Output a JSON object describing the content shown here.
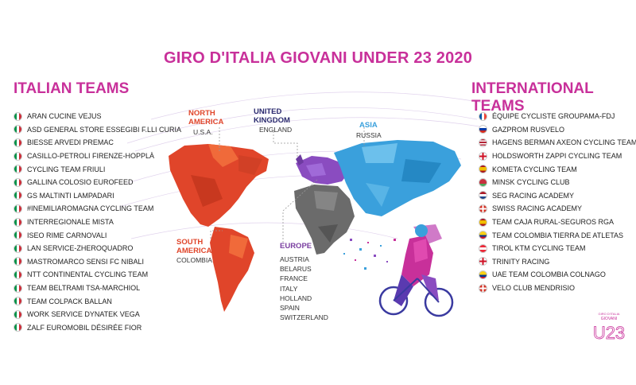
{
  "title": "GIRO D'ITALIA GIOVANI UNDER 23 2020",
  "italian": {
    "heading": "ITALIAN TEAMS",
    "teams": [
      "ARAN CUCINE VEJUS",
      "ASD GENERAL STORE ESSEGIBI F.LLI CURIA",
      "BIESSE ARVEDI PREMAC",
      "CASILLO-PETROLI FIRENZE-HOPPLÀ",
      "CYCLING TEAM FRIULI",
      "GALLINA COLOSIO EUROFEED",
      "GS MALTINTI LAMPADARI",
      "#INEMILIAROMAGNA CYCLING TEAM",
      "INTERREGIONALE MISTA",
      "ISEO RIME CARNOVALI",
      "LAN SERVICE-ZHEROQUADRO",
      "MASTROMARCO SENSI FC NIBALI",
      "NTT CONTINENTAL CYCLING TEAM",
      "TEAM BELTRAMI TSA-MARCHIOL",
      "TEAM COLPACK BALLAN",
      "WORK SERVICE DYNATEK VEGA",
      "ZALF EUROMOBIL DÉSIRÉE FIOR"
    ]
  },
  "international": {
    "heading": "INTERNATIONAL TEAMS",
    "teams": [
      {
        "name": "ÉQUIPE CYCLISTE GROUPAMA-FDJ",
        "flag": "france"
      },
      {
        "name": "GAZPROM RUSVELO",
        "flag": "russia"
      },
      {
        "name": "HAGENS BERMAN AXEON CYCLING TEAM",
        "flag": "usa"
      },
      {
        "name": "HOLDSWORTH ZAPPI CYCLING TEAM",
        "flag": "england"
      },
      {
        "name": "KOMETA CYCLING TEAM",
        "flag": "spain"
      },
      {
        "name": "MINSK CYCLING CLUB",
        "flag": "belarus"
      },
      {
        "name": "SEG RACING ACADEMY",
        "flag": "netherlands"
      },
      {
        "name": "SWISS RACING ACADEMY",
        "flag": "switzerland"
      },
      {
        "name": "TEAM CAJA RURAL-SEGUROS RGA",
        "flag": "spain"
      },
      {
        "name": "TEAM COLOMBIA TIERRA DE ATLETAS",
        "flag": "colombia"
      },
      {
        "name": "TIROL KTM CYCLING TEAM",
        "flag": "austria"
      },
      {
        "name": "TRINITY RACING",
        "flag": "england"
      },
      {
        "name": "UAE TEAM COLOMBIA COLNAGO",
        "flag": "colombia"
      },
      {
        "name": "VELO CLUB MENDRISIO",
        "flag": "switzerland"
      }
    ]
  },
  "regions": {
    "north_america": {
      "head1": "NORTH",
      "head2": "AMERICA",
      "country": "U.S.A.",
      "color": "#e0452a"
    },
    "south_america": {
      "head1": "SOUTH",
      "head2": "AMERICA",
      "country": "COLOMBIA",
      "color": "#e0452a"
    },
    "uk": {
      "head1": "UNITED",
      "head2": "KINGDOM",
      "country": "ENGLAND",
      "color": "#2a2a6e"
    },
    "asia": {
      "head1": "ASIA",
      "country": "RUSSIA",
      "color": "#3aa0dc"
    },
    "europe": {
      "head1": "EUROPE",
      "color": "#7a3fa0",
      "countries": [
        "AUSTRIA",
        "BELARUS",
        "FRANCE",
        "ITALY",
        "HOLLAND",
        "SPAIN",
        "SWITZERLAND"
      ]
    }
  },
  "logo": {
    "text1": "GIRO D'ITALIA",
    "text2": "GIOVANI",
    "text3": "U23"
  },
  "colors": {
    "accent": "#c8309a",
    "america": "#e0452a",
    "asia": "#3aa0dc",
    "europe": "#7a3fa0",
    "africa": "#6b6b6b"
  }
}
